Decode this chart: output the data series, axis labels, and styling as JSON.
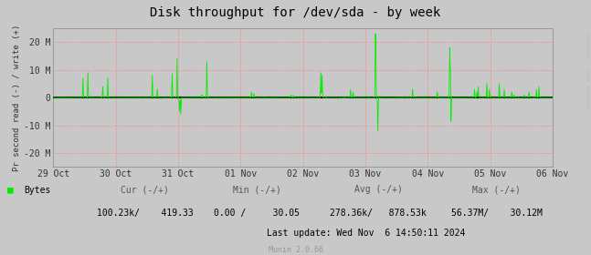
{
  "title": "Disk throughput for /dev/sda - by week",
  "ylabel": "Pr second read (-) / write (+)",
  "background_color": "#C8C8C8",
  "plot_bg_color": "#C8C8C8",
  "grid_color_h": "#FFAAAA",
  "grid_color_v": "#FFAAAA",
  "line_color": "#00EE00",
  "zero_line_color": "#000000",
  "border_color": "#AAAAAA",
  "ylim": [
    -25000000,
    25000000
  ],
  "yticks": [
    -20000000,
    -10000000,
    0,
    10000000,
    20000000
  ],
  "ytick_labels": [
    "-20 M",
    "-10 M",
    "0",
    "10 M",
    "20 M"
  ],
  "xtick_labels": [
    "29 Oct",
    "30 Oct",
    "31 Oct",
    "01 Nov",
    "02 Nov",
    "03 Nov",
    "04 Nov",
    "05 Nov",
    "06 Nov"
  ],
  "footer_text": "Munin 2.0.66",
  "legend_label": "Bytes",
  "cur_label": "Cur (-/+)",
  "cur_value": "100.23k/    419.33",
  "min_label": "Min (-/+)",
  "min_value": "0.00 /     30.05",
  "avg_label": "Avg (-/+)",
  "avg_value": "278.36k/   878.53k",
  "max_label": "Max (-/+)",
  "max_value": "56.37M/    30.12M",
  "last_update": "Last update: Wed Nov  6 14:50:11 2024",
  "right_label": "RRDTOOL / TOBI OETIKER",
  "title_fontsize": 10,
  "tick_fontsize": 7,
  "label_fontsize": 6.5,
  "footer_fontsize": 6
}
